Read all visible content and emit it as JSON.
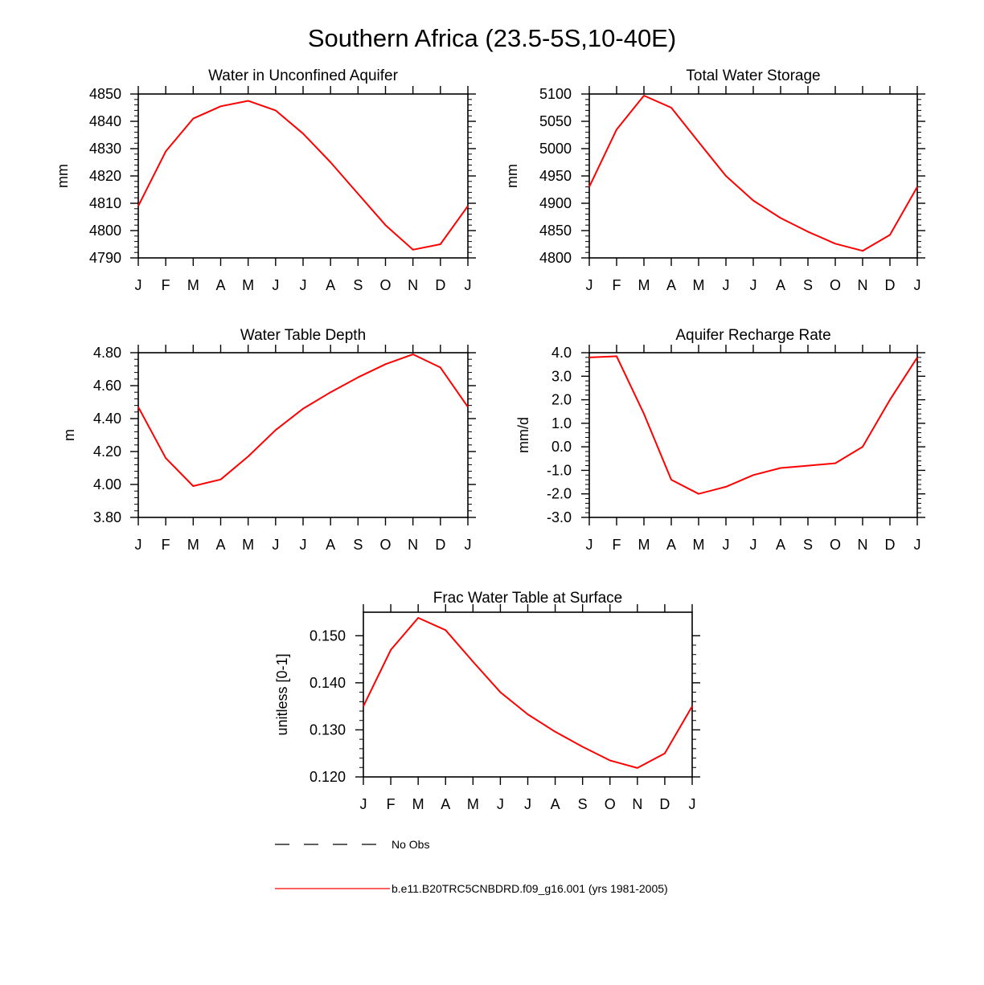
{
  "figure": {
    "title": "Southern Africa (23.5-5S,10-40E)",
    "line_color": "#ff0000"
  },
  "legend": {
    "items": [
      {
        "label": "No Obs",
        "style": "dashed",
        "color": "#000000"
      },
      {
        "label": "b.e11.B20TRC5CNBDRD.f09_g16.001 (yrs 1981-2005)",
        "style": "solid",
        "color": "#ff0000"
      }
    ]
  },
  "chart_data": [
    {
      "type": "line",
      "title": "Water in Unconfined Aquifer",
      "xlabel": "",
      "ylabel": "mm",
      "categories": [
        "J",
        "F",
        "M",
        "A",
        "M",
        "J",
        "J",
        "A",
        "S",
        "O",
        "N",
        "D",
        "J"
      ],
      "ylim": [
        4790,
        4850
      ],
      "yticks": [
        4790,
        4800,
        4810,
        4820,
        4830,
        4840,
        4850
      ],
      "ytick_labels": [
        "4790",
        "4800",
        "4810",
        "4820",
        "4830",
        "4840",
        "4850"
      ],
      "series": [
        {
          "name": "b.e11.B20TRC5CNBDRD.f09_g16.001 (yrs 1981-2005)",
          "values": [
            4809,
            4829,
            4841,
            4845.5,
            4847.5,
            4844,
            4835.5,
            4825,
            4813.5,
            4802,
            4793,
            4795,
            4809
          ]
        }
      ]
    },
    {
      "type": "line",
      "title": "Total Water Storage",
      "xlabel": "",
      "ylabel": "mm",
      "categories": [
        "J",
        "F",
        "M",
        "A",
        "M",
        "J",
        "J",
        "A",
        "S",
        "O",
        "N",
        "D",
        "J"
      ],
      "ylim": [
        4800,
        5100
      ],
      "yticks": [
        4800,
        4850,
        4900,
        4950,
        5000,
        5050,
        5100
      ],
      "ytick_labels": [
        "4800",
        "4850",
        "4900",
        "4950",
        "5000",
        "5050",
        "5100"
      ],
      "series": [
        {
          "name": "b.e11.B20TRC5CNBDRD.f09_g16.001 (yrs 1981-2005)",
          "values": [
            4930,
            5035,
            5097,
            5075,
            5012,
            4950,
            4905,
            4873,
            4848,
            4826,
            4813,
            4842,
            4930
          ]
        }
      ]
    },
    {
      "type": "line",
      "title": "Water Table Depth",
      "xlabel": "",
      "ylabel": "m",
      "categories": [
        "J",
        "F",
        "M",
        "A",
        "M",
        "J",
        "J",
        "A",
        "S",
        "O",
        "N",
        "D",
        "J"
      ],
      "ylim": [
        3.8,
        4.8
      ],
      "yticks": [
        3.8,
        4.0,
        4.2,
        4.4,
        4.6,
        4.8
      ],
      "ytick_labels": [
        "3.80",
        "4.00",
        "4.20",
        "4.40",
        "4.60",
        "4.80"
      ],
      "series": [
        {
          "name": "b.e11.B20TRC5CNBDRD.f09_g16.001 (yrs 1981-2005)",
          "values": [
            4.47,
            4.16,
            3.99,
            4.03,
            4.17,
            4.33,
            4.46,
            4.56,
            4.65,
            4.73,
            4.79,
            4.71,
            4.47
          ]
        }
      ]
    },
    {
      "type": "line",
      "title": "Aquifer Recharge Rate",
      "xlabel": "",
      "ylabel": "mm/d",
      "categories": [
        "J",
        "F",
        "M",
        "A",
        "M",
        "J",
        "J",
        "A",
        "S",
        "O",
        "N",
        "D",
        "J"
      ],
      "ylim": [
        -3.0,
        4.0
      ],
      "yticks": [
        -3,
        -2,
        -1,
        0,
        1,
        2,
        3,
        4
      ],
      "ytick_labels": [
        "-3.0",
        "-2.0",
        "-1.0",
        "0.0",
        "1.0",
        "2.0",
        "3.0",
        "4.0"
      ],
      "series": [
        {
          "name": "b.e11.B20TRC5CNBDRD.f09_g16.001 (yrs 1981-2005)",
          "values": [
            3.8,
            3.85,
            1.4,
            -1.4,
            -2.0,
            -1.7,
            -1.2,
            -0.9,
            -0.8,
            -0.7,
            0.0,
            2.0,
            3.8
          ]
        }
      ]
    },
    {
      "type": "line",
      "title": "Frac Water Table at Surface",
      "xlabel": "",
      "ylabel": "unitless [0-1]",
      "categories": [
        "J",
        "F",
        "M",
        "A",
        "M",
        "J",
        "J",
        "A",
        "S",
        "O",
        "N",
        "D",
        "J"
      ],
      "ylim": [
        0.12,
        0.155
      ],
      "yticks": [
        0.12,
        0.13,
        0.14,
        0.15
      ],
      "ytick_labels": [
        "0.120",
        "0.130",
        "0.140",
        "0.150"
      ],
      "series": [
        {
          "name": "b.e11.B20TRC5CNBDRD.f09_g16.001 (yrs 1981-2005)",
          "values": [
            0.135,
            0.147,
            0.1538,
            0.1512,
            0.1445,
            0.138,
            0.1333,
            0.1296,
            0.1264,
            0.1235,
            0.1219,
            0.125,
            0.135
          ]
        }
      ]
    }
  ]
}
